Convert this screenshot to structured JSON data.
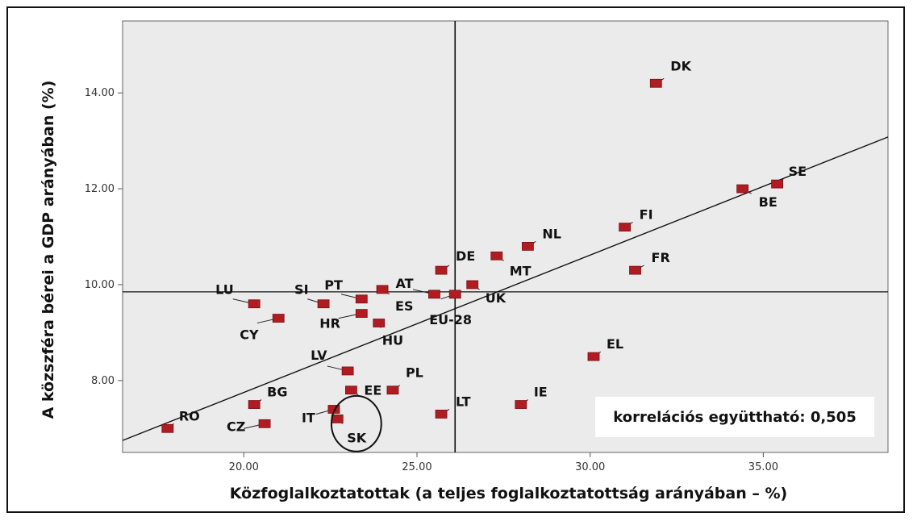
{
  "chart_data": {
    "type": "scatter",
    "title": "",
    "xlabel": "Közfoglalkoztatottak (a teljes foglalkoztatottság arányában – %)",
    "ylabel": "A közszféra bérei a GDP arányában (%)",
    "xlim": [
      16.5,
      38.6
    ],
    "ylim": [
      6.5,
      15.5
    ],
    "x_ticks": [
      20,
      25,
      30,
      35
    ],
    "x_tick_labels": [
      "20.00",
      "25.00",
      "30.00",
      "35.00"
    ],
    "y_ticks": [
      8,
      10,
      12,
      14
    ],
    "y_tick_labels": [
      "8.00",
      "10.00",
      "12.00",
      "14.00"
    ],
    "grid": false,
    "mean_lines": {
      "x": 26.1,
      "y": 9.85
    },
    "regression_line": {
      "from": [
        16.5,
        6.75
      ],
      "to": [
        38.6,
        13.08
      ]
    },
    "marker_color": "#b01c22",
    "plot_background": "#ebebeb",
    "highlight": {
      "center": [
        23.25,
        7.1
      ],
      "radius_x": 0.72,
      "radius_y": 0.58
    },
    "annotation": "korrelációs együttható: 0,505",
    "points": [
      {
        "label": "DK",
        "x": 31.9,
        "y": 14.2
      },
      {
        "label": "SE",
        "x": 35.4,
        "y": 12.1
      },
      {
        "label": "BE",
        "x": 34.4,
        "y": 12.0
      },
      {
        "label": "FI",
        "x": 31.0,
        "y": 11.2
      },
      {
        "label": "FR",
        "x": 31.3,
        "y": 10.3
      },
      {
        "label": "NL",
        "x": 28.2,
        "y": 10.8
      },
      {
        "label": "MT",
        "x": 27.3,
        "y": 10.6
      },
      {
        "label": "DE",
        "x": 25.7,
        "y": 10.3
      },
      {
        "label": "UK",
        "x": 26.6,
        "y": 10.0
      },
      {
        "label": "EU-28",
        "x": 26.1,
        "y": 9.8
      },
      {
        "label": "AT",
        "x": 25.5,
        "y": 9.8
      },
      {
        "label": "ES",
        "x": 24.0,
        "y": 9.9
      },
      {
        "label": "PT",
        "x": 23.4,
        "y": 9.7
      },
      {
        "label": "SI",
        "x": 22.3,
        "y": 9.6
      },
      {
        "label": "LU",
        "x": 20.3,
        "y": 9.6
      },
      {
        "label": "CY",
        "x": 21.0,
        "y": 9.3
      },
      {
        "label": "HR",
        "x": 23.4,
        "y": 9.4
      },
      {
        "label": "HU",
        "x": 23.9,
        "y": 9.2
      },
      {
        "label": "LV",
        "x": 23.0,
        "y": 8.2
      },
      {
        "label": "EL",
        "x": 30.1,
        "y": 8.5
      },
      {
        "label": "PL",
        "x": 24.3,
        "y": 7.8
      },
      {
        "label": "EE",
        "x": 23.1,
        "y": 7.8
      },
      {
        "label": "IE",
        "x": 28.0,
        "y": 7.5
      },
      {
        "label": "LT",
        "x": 25.7,
        "y": 7.3
      },
      {
        "label": "BG",
        "x": 20.3,
        "y": 7.5
      },
      {
        "label": "CZ",
        "x": 20.6,
        "y": 7.1
      },
      {
        "label": "IT",
        "x": 22.6,
        "y": 7.4
      },
      {
        "label": "SK",
        "x": 22.7,
        "y": 7.2
      },
      {
        "label": "RO",
        "x": 17.8,
        "y": 7.0
      }
    ]
  }
}
